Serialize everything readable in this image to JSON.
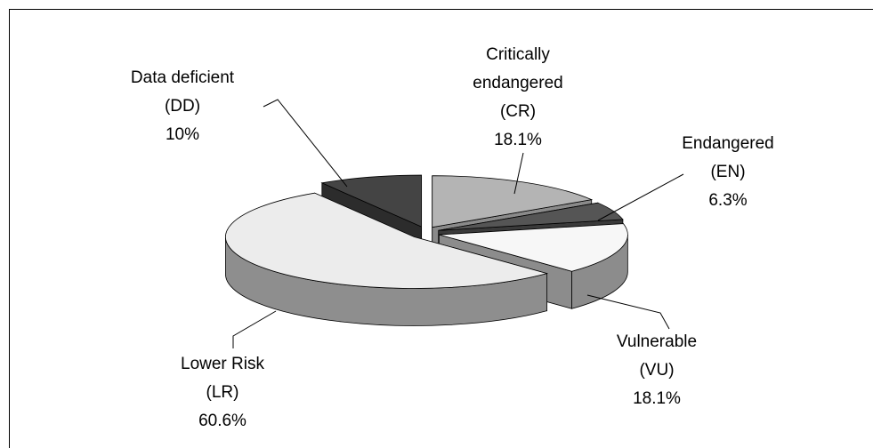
{
  "chart_data": {
    "type": "pie3d",
    "categories": [
      [
        "Critically",
        "endangered",
        "(CR)"
      ],
      [
        "Endangered",
        "(EN)"
      ],
      [
        "Vulnerable",
        "(VU)"
      ],
      [
        "Lower Risk",
        "(LR)"
      ],
      [
        "Data deficient",
        "(DD)"
      ]
    ],
    "values": [
      18.1,
      6.3,
      18.1,
      60.6,
      10
    ],
    "value_labels": [
      "18.1%",
      "6.3%",
      "18.1%",
      "60.6%",
      "10%"
    ],
    "colors": [
      "#b4b4b4",
      "#555555",
      "#f7f7f7",
      "#ececec",
      "#444444"
    ],
    "side_colors": [
      "#8a8a8a",
      "#3a3a3a",
      "#8c8c8c",
      "#8e8e8e",
      "#2c2c2c"
    ]
  }
}
